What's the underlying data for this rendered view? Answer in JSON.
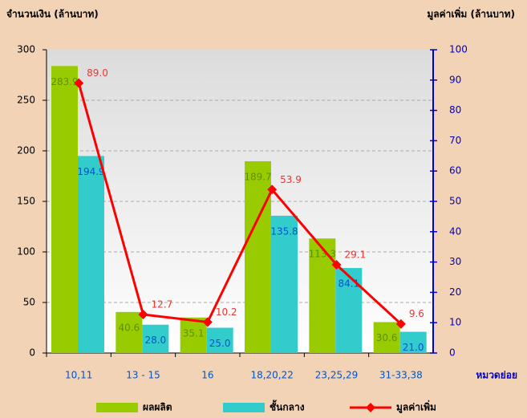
{
  "chart_data": {
    "type": "bar",
    "ylabel": "จำนวนเงิน (ล้านบาท)",
    "y2label": "มูลค่าเพิ่ม (ล้านบาท)",
    "xlabel": "หมวดย่อย",
    "categories": [
      "10,11",
      "13 - 15",
      "16",
      "18,20,22",
      "23,25,29",
      "31-33,38"
    ],
    "series": [
      {
        "name": "ผลผลิต",
        "type": "bar",
        "color": "#99cc00",
        "label_color": "#5f8f00",
        "values": [
          283.9,
          40.6,
          35.1,
          189.7,
          113.3,
          30.6
        ],
        "value_labels": [
          "283.9",
          "40.6",
          "35.1",
          "189.7",
          "113.3",
          "30.6"
        ]
      },
      {
        "name": "ชั้นกลาง",
        "type": "bar",
        "color": "#33cccc",
        "label_color": "#0055cc",
        "values": [
          194.9,
          28.0,
          25.0,
          135.8,
          84.1,
          21.0
        ],
        "value_labels": [
          "194.9",
          "28.0",
          "25.0",
          "135.8",
          "84.1",
          "21.0"
        ]
      },
      {
        "name": "มูลค่าเพิ่ม",
        "type": "line",
        "axis": "y2",
        "color": "#ff0000",
        "label_color": "#ee3333",
        "values": [
          89.0,
          12.7,
          10.2,
          53.9,
          29.1,
          9.6
        ],
        "value_labels": [
          "89.0",
          "12.7",
          "10.2",
          "53.9",
          "29.1",
          "9.6"
        ]
      }
    ],
    "ylim": [
      0,
      300
    ],
    "yticks": [
      0,
      50,
      100,
      150,
      200,
      250,
      300
    ],
    "y2lim": [
      0,
      100
    ],
    "y2ticks": [
      0,
      10,
      20,
      30,
      40,
      50,
      60,
      70,
      80,
      90,
      100
    ],
    "y2color": "#0000cc",
    "grid": true,
    "legend": "bottom"
  }
}
